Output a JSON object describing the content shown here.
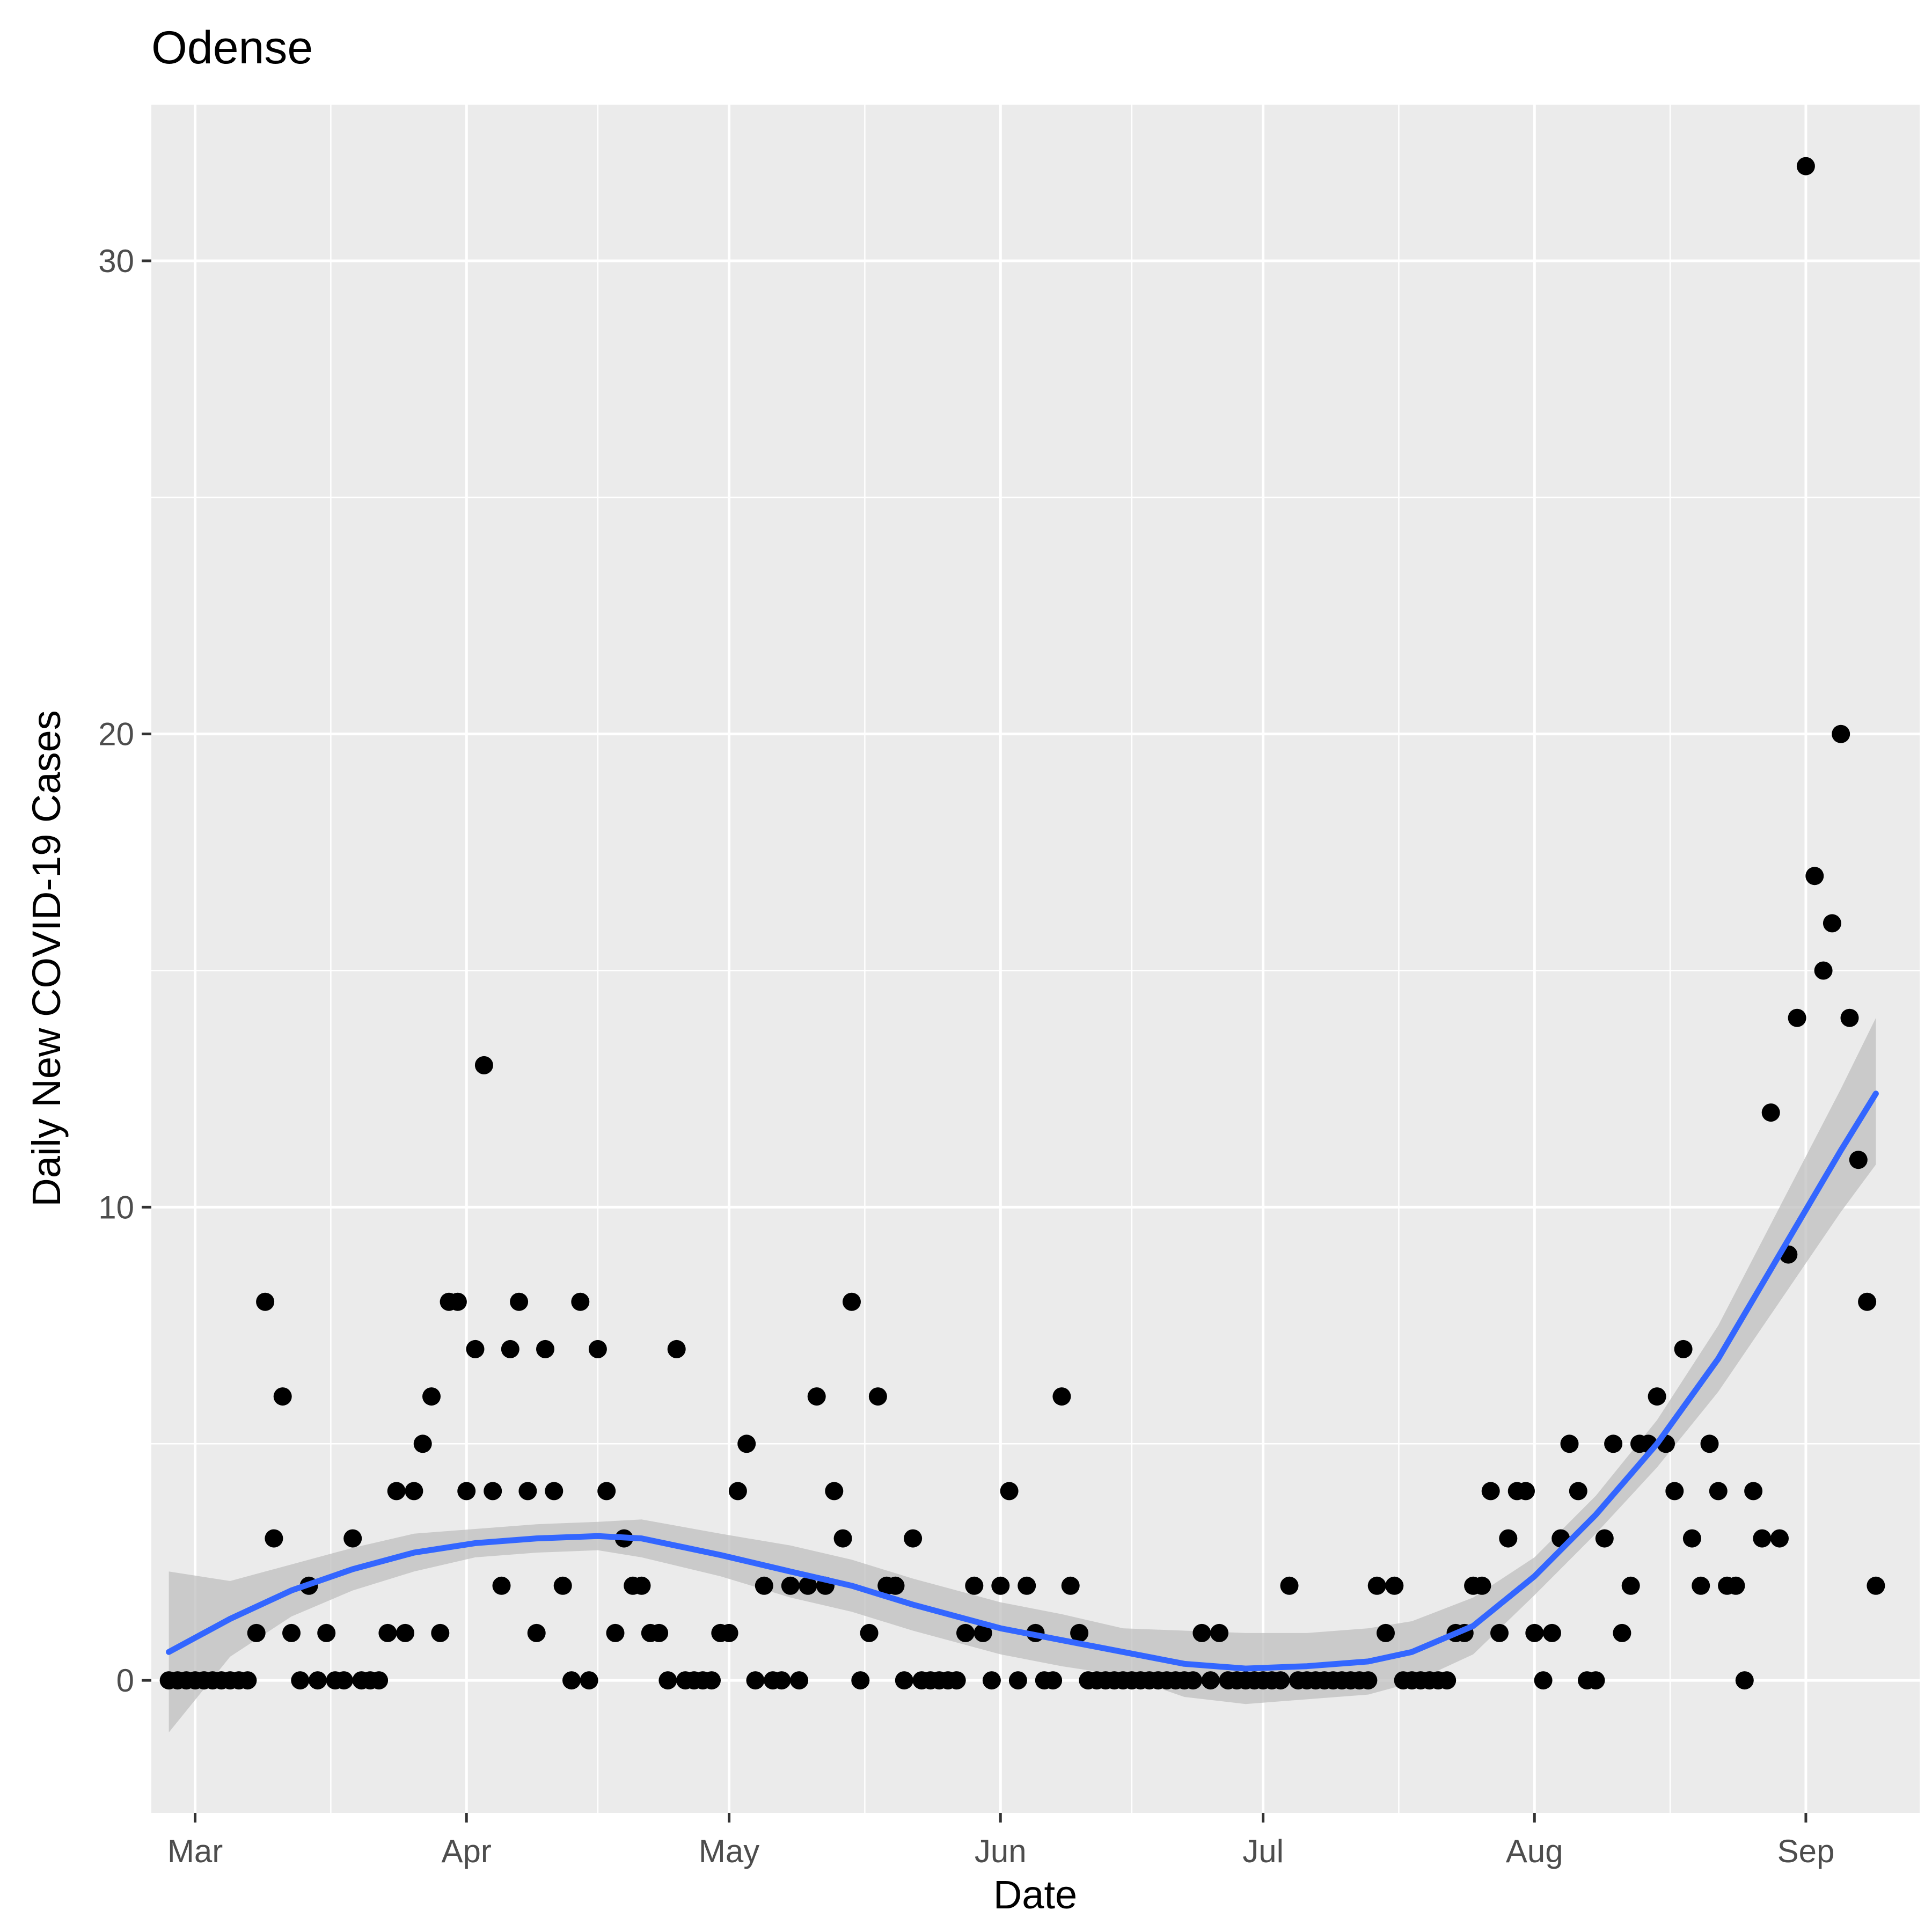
{
  "chart_data": {
    "type": "scatter",
    "title": "Odense",
    "xlabel": "Date",
    "ylabel": "Daily New COVID-19 Cases",
    "x_ticks": [
      "Mar",
      "Apr",
      "May",
      "Jun",
      "Jul",
      "Aug",
      "Sep"
    ],
    "y_ticks": [
      0,
      10,
      20,
      30
    ],
    "xlim": [
      "2020-02-25",
      "2020-09-14"
    ],
    "ylim": [
      -2.8,
      33.3
    ],
    "grid": true,
    "colors": {
      "panel": "#ebebeb",
      "grid": "#ffffff",
      "points": "#000000",
      "smooth_line": "#3366ff",
      "confidence_band": "#bfbfbf"
    },
    "series": [
      {
        "type": "scatter",
        "points": [
          [
            "2020-02-27",
            0
          ],
          [
            "2020-02-28",
            0
          ],
          [
            "2020-02-29",
            0
          ],
          [
            "2020-03-01",
            0
          ],
          [
            "2020-03-02",
            0
          ],
          [
            "2020-03-03",
            0
          ],
          [
            "2020-03-04",
            0
          ],
          [
            "2020-03-05",
            0
          ],
          [
            "2020-03-06",
            0
          ],
          [
            "2020-03-07",
            0
          ],
          [
            "2020-03-08",
            1
          ],
          [
            "2020-03-09",
            8
          ],
          [
            "2020-03-10",
            3
          ],
          [
            "2020-03-11",
            6
          ],
          [
            "2020-03-12",
            1
          ],
          [
            "2020-03-13",
            0
          ],
          [
            "2020-03-14",
            2
          ],
          [
            "2020-03-15",
            0
          ],
          [
            "2020-03-16",
            1
          ],
          [
            "2020-03-17",
            0
          ],
          [
            "2020-03-18",
            0
          ],
          [
            "2020-03-19",
            3
          ],
          [
            "2020-03-20",
            0
          ],
          [
            "2020-03-21",
            0
          ],
          [
            "2020-03-22",
            0
          ],
          [
            "2020-03-23",
            1
          ],
          [
            "2020-03-24",
            4
          ],
          [
            "2020-03-25",
            1
          ],
          [
            "2020-03-26",
            4
          ],
          [
            "2020-03-27",
            5
          ],
          [
            "2020-03-28",
            6
          ],
          [
            "2020-03-29",
            1
          ],
          [
            "2020-03-30",
            8
          ],
          [
            "2020-03-31",
            8
          ],
          [
            "2020-04-01",
            4
          ],
          [
            "2020-04-02",
            7
          ],
          [
            "2020-04-03",
            13
          ],
          [
            "2020-04-04",
            4
          ],
          [
            "2020-04-05",
            2
          ],
          [
            "2020-04-06",
            7
          ],
          [
            "2020-04-07",
            8
          ],
          [
            "2020-04-08",
            4
          ],
          [
            "2020-04-09",
            1
          ],
          [
            "2020-04-10",
            7
          ],
          [
            "2020-04-11",
            4
          ],
          [
            "2020-04-12",
            2
          ],
          [
            "2020-04-13",
            0
          ],
          [
            "2020-04-14",
            8
          ],
          [
            "2020-04-15",
            0
          ],
          [
            "2020-04-16",
            7
          ],
          [
            "2020-04-17",
            4
          ],
          [
            "2020-04-18",
            1
          ],
          [
            "2020-04-19",
            3
          ],
          [
            "2020-04-20",
            2
          ],
          [
            "2020-04-21",
            2
          ],
          [
            "2020-04-22",
            1
          ],
          [
            "2020-04-23",
            1
          ],
          [
            "2020-04-24",
            0
          ],
          [
            "2020-04-25",
            7
          ],
          [
            "2020-04-26",
            0
          ],
          [
            "2020-04-27",
            0
          ],
          [
            "2020-04-28",
            0
          ],
          [
            "2020-04-29",
            0
          ],
          [
            "2020-04-30",
            1
          ],
          [
            "2020-05-01",
            1
          ],
          [
            "2020-05-02",
            4
          ],
          [
            "2020-05-03",
            5
          ],
          [
            "2020-05-04",
            0
          ],
          [
            "2020-05-05",
            2
          ],
          [
            "2020-05-06",
            0
          ],
          [
            "2020-05-07",
            0
          ],
          [
            "2020-05-08",
            2
          ],
          [
            "2020-05-09",
            0
          ],
          [
            "2020-05-10",
            2
          ],
          [
            "2020-05-11",
            6
          ],
          [
            "2020-05-12",
            2
          ],
          [
            "2020-05-13",
            4
          ],
          [
            "2020-05-14",
            3
          ],
          [
            "2020-05-15",
            8
          ],
          [
            "2020-05-16",
            0
          ],
          [
            "2020-05-17",
            1
          ],
          [
            "2020-05-18",
            6
          ],
          [
            "2020-05-19",
            2
          ],
          [
            "2020-05-20",
            2
          ],
          [
            "2020-05-21",
            0
          ],
          [
            "2020-05-22",
            3
          ],
          [
            "2020-05-23",
            0
          ],
          [
            "2020-05-24",
            0
          ],
          [
            "2020-05-25",
            0
          ],
          [
            "2020-05-26",
            0
          ],
          [
            "2020-05-27",
            0
          ],
          [
            "2020-05-28",
            1
          ],
          [
            "2020-05-29",
            2
          ],
          [
            "2020-05-30",
            1
          ],
          [
            "2020-05-31",
            0
          ],
          [
            "2020-06-01",
            2
          ],
          [
            "2020-06-02",
            4
          ],
          [
            "2020-06-03",
            0
          ],
          [
            "2020-06-04",
            2
          ],
          [
            "2020-06-05",
            1
          ],
          [
            "2020-06-06",
            0
          ],
          [
            "2020-06-07",
            0
          ],
          [
            "2020-06-08",
            6
          ],
          [
            "2020-06-09",
            2
          ],
          [
            "2020-06-10",
            1
          ],
          [
            "2020-06-11",
            0
          ],
          [
            "2020-06-12",
            0
          ],
          [
            "2020-06-13",
            0
          ],
          [
            "2020-06-14",
            0
          ],
          [
            "2020-06-15",
            0
          ],
          [
            "2020-06-16",
            0
          ],
          [
            "2020-06-17",
            0
          ],
          [
            "2020-06-18",
            0
          ],
          [
            "2020-06-19",
            0
          ],
          [
            "2020-06-20",
            0
          ],
          [
            "2020-06-21",
            0
          ],
          [
            "2020-06-22",
            0
          ],
          [
            "2020-06-23",
            0
          ],
          [
            "2020-06-24",
            1
          ],
          [
            "2020-06-25",
            0
          ],
          [
            "2020-06-26",
            1
          ],
          [
            "2020-06-27",
            0
          ],
          [
            "2020-06-28",
            0
          ],
          [
            "2020-06-29",
            0
          ],
          [
            "2020-06-30",
            0
          ],
          [
            "2020-07-01",
            0
          ],
          [
            "2020-07-02",
            0
          ],
          [
            "2020-07-03",
            0
          ],
          [
            "2020-07-04",
            2
          ],
          [
            "2020-07-05",
            0
          ],
          [
            "2020-07-06",
            0
          ],
          [
            "2020-07-07",
            0
          ],
          [
            "2020-07-08",
            0
          ],
          [
            "2020-07-09",
            0
          ],
          [
            "2020-07-10",
            0
          ],
          [
            "2020-07-11",
            0
          ],
          [
            "2020-07-12",
            0
          ],
          [
            "2020-07-13",
            0
          ],
          [
            "2020-07-14",
            2
          ],
          [
            "2020-07-15",
            1
          ],
          [
            "2020-07-16",
            2
          ],
          [
            "2020-07-17",
            0
          ],
          [
            "2020-07-18",
            0
          ],
          [
            "2020-07-19",
            0
          ],
          [
            "2020-07-20",
            0
          ],
          [
            "2020-07-21",
            0
          ],
          [
            "2020-07-22",
            0
          ],
          [
            "2020-07-23",
            1
          ],
          [
            "2020-07-24",
            1
          ],
          [
            "2020-07-25",
            2
          ],
          [
            "2020-07-26",
            2
          ],
          [
            "2020-07-27",
            4
          ],
          [
            "2020-07-28",
            1
          ],
          [
            "2020-07-29",
            3
          ],
          [
            "2020-07-30",
            4
          ],
          [
            "2020-07-31",
            4
          ],
          [
            "2020-08-01",
            1
          ],
          [
            "2020-08-02",
            0
          ],
          [
            "2020-08-03",
            1
          ],
          [
            "2020-08-04",
            3
          ],
          [
            "2020-08-05",
            5
          ],
          [
            "2020-08-06",
            4
          ],
          [
            "2020-08-07",
            0
          ],
          [
            "2020-08-08",
            0
          ],
          [
            "2020-08-09",
            3
          ],
          [
            "2020-08-10",
            5
          ],
          [
            "2020-08-11",
            1
          ],
          [
            "2020-08-12",
            2
          ],
          [
            "2020-08-13",
            5
          ],
          [
            "2020-08-14",
            5
          ],
          [
            "2020-08-15",
            6
          ],
          [
            "2020-08-16",
            5
          ],
          [
            "2020-08-17",
            4
          ],
          [
            "2020-08-18",
            7
          ],
          [
            "2020-08-19",
            3
          ],
          [
            "2020-08-20",
            2
          ],
          [
            "2020-08-21",
            5
          ],
          [
            "2020-08-22",
            4
          ],
          [
            "2020-08-23",
            2
          ],
          [
            "2020-08-24",
            2
          ],
          [
            "2020-08-25",
            0
          ],
          [
            "2020-08-26",
            4
          ],
          [
            "2020-08-27",
            3
          ],
          [
            "2020-08-28",
            12
          ],
          [
            "2020-08-29",
            3
          ],
          [
            "2020-08-30",
            9
          ],
          [
            "2020-08-31",
            14
          ],
          [
            "2020-09-01",
            32
          ],
          [
            "2020-09-02",
            17
          ],
          [
            "2020-09-03",
            15
          ],
          [
            "2020-09-04",
            16
          ],
          [
            "2020-09-05",
            20
          ],
          [
            "2020-09-06",
            14
          ],
          [
            "2020-09-07",
            11
          ],
          [
            "2020-09-08",
            8
          ],
          [
            "2020-09-09",
            2
          ]
        ]
      },
      {
        "type": "smooth",
        "points": [
          [
            "2020-02-27",
            0.6
          ],
          [
            "2020-03-05",
            1.3
          ],
          [
            "2020-03-12",
            1.9
          ],
          [
            "2020-03-19",
            2.35
          ],
          [
            "2020-03-26",
            2.7
          ],
          [
            "2020-04-02",
            2.9
          ],
          [
            "2020-04-09",
            3.0
          ],
          [
            "2020-04-16",
            3.05
          ],
          [
            "2020-04-21",
            3.0
          ],
          [
            "2020-04-30",
            2.65
          ],
          [
            "2020-05-08",
            2.3
          ],
          [
            "2020-05-15",
            2.0
          ],
          [
            "2020-05-22",
            1.6
          ],
          [
            "2020-06-01",
            1.1
          ],
          [
            "2020-06-08",
            0.85
          ],
          [
            "2020-06-15",
            0.6
          ],
          [
            "2020-06-22",
            0.35
          ],
          [
            "2020-06-29",
            0.25
          ],
          [
            "2020-07-06",
            0.3
          ],
          [
            "2020-07-13",
            0.4
          ],
          [
            "2020-07-18",
            0.6
          ],
          [
            "2020-07-25",
            1.15
          ],
          [
            "2020-08-01",
            2.2
          ],
          [
            "2020-08-08",
            3.5
          ],
          [
            "2020-08-15",
            5.0
          ],
          [
            "2020-08-22",
            6.8
          ],
          [
            "2020-08-29",
            9.0
          ],
          [
            "2020-09-05",
            11.2
          ],
          [
            "2020-09-09",
            12.4
          ]
        ],
        "lower": [
          -1.1,
          0.5,
          1.35,
          1.9,
          2.3,
          2.6,
          2.7,
          2.75,
          2.6,
          2.2,
          1.75,
          1.45,
          1.05,
          0.55,
          0.3,
          0.1,
          -0.35,
          -0.5,
          -0.4,
          -0.3,
          -0.05,
          0.55,
          1.8,
          3.1,
          4.5,
          6.1,
          8.0,
          9.9,
          10.9
        ],
        "upper": [
          2.3,
          2.1,
          2.45,
          2.8,
          3.1,
          3.2,
          3.3,
          3.35,
          3.4,
          3.1,
          2.85,
          2.55,
          2.15,
          1.65,
          1.4,
          1.1,
          1.05,
          1.0,
          1.0,
          1.1,
          1.25,
          1.75,
          2.6,
          3.9,
          5.5,
          7.5,
          10.0,
          12.5,
          14.0
        ]
      }
    ]
  }
}
